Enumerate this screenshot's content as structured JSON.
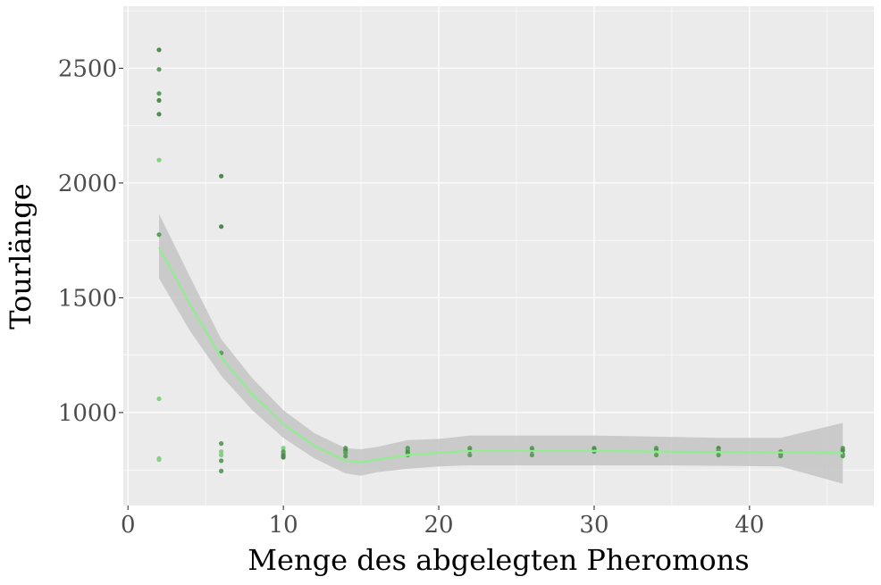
{
  "chart_data": {
    "type": "scatter",
    "title": "",
    "xlabel": "Menge des abgelegten Pheromons",
    "ylabel": "Tourlänge",
    "xlim": [
      -0.3,
      48
    ],
    "ylim": [
      595,
      2770
    ],
    "x_ticks": [
      0,
      10,
      20,
      30,
      40
    ],
    "y_ticks": [
      1000,
      1500,
      2000,
      2500
    ],
    "x_tick_labels": [
      "0",
      "10",
      "20",
      "30",
      "40"
    ],
    "y_tick_labels": [
      "1000",
      "1500",
      "2000",
      "2500"
    ],
    "grid": true,
    "legend": "none",
    "colors": {
      "panel_background": "#ebebeb",
      "grid": "#ffffff",
      "points_dark": "#4f8a4f",
      "points_mid": "#5e9e5e",
      "points_light": "#84d184",
      "smooth_line": "#90ee90",
      "confidence_band": "#c4c4c4"
    },
    "points": [
      {
        "x": 2,
        "y": 2580,
        "shade": "dark"
      },
      {
        "x": 2,
        "y": 2495,
        "shade": "mid"
      },
      {
        "x": 2,
        "y": 2390,
        "shade": "mid"
      },
      {
        "x": 2,
        "y": 2360,
        "shade": "dark"
      },
      {
        "x": 2,
        "y": 2300,
        "shade": "dark"
      },
      {
        "x": 2,
        "y": 2100,
        "shade": "light"
      },
      {
        "x": 2,
        "y": 1775,
        "shade": "mid"
      },
      {
        "x": 2,
        "y": 1060,
        "shade": "light"
      },
      {
        "x": 2,
        "y": 800,
        "shade": "light"
      },
      {
        "x": 2,
        "y": 795,
        "shade": "light"
      },
      {
        "x": 6,
        "y": 2030,
        "shade": "dark"
      },
      {
        "x": 6,
        "y": 1810,
        "shade": "dark"
      },
      {
        "x": 6,
        "y": 1260,
        "shade": "mid"
      },
      {
        "x": 6,
        "y": 865,
        "shade": "mid"
      },
      {
        "x": 6,
        "y": 830,
        "shade": "light"
      },
      {
        "x": 6,
        "y": 815,
        "shade": "light"
      },
      {
        "x": 6,
        "y": 790,
        "shade": "mid"
      },
      {
        "x": 6,
        "y": 745,
        "shade": "mid"
      },
      {
        "x": 10,
        "y": 845,
        "shade": "light"
      },
      {
        "x": 10,
        "y": 830,
        "shade": "mid"
      },
      {
        "x": 10,
        "y": 820,
        "shade": "mid"
      },
      {
        "x": 10,
        "y": 812,
        "shade": "dark"
      },
      {
        "x": 10,
        "y": 805,
        "shade": "dark"
      },
      {
        "x": 14,
        "y": 845,
        "shade": "mid"
      },
      {
        "x": 14,
        "y": 835,
        "shade": "dark"
      },
      {
        "x": 14,
        "y": 825,
        "shade": "mid"
      },
      {
        "x": 14,
        "y": 810,
        "shade": "mid"
      },
      {
        "x": 18,
        "y": 845,
        "shade": "mid"
      },
      {
        "x": 18,
        "y": 835,
        "shade": "mid"
      },
      {
        "x": 18,
        "y": 825,
        "shade": "dark"
      },
      {
        "x": 18,
        "y": 815,
        "shade": "mid"
      },
      {
        "x": 22,
        "y": 845,
        "shade": "mid"
      },
      {
        "x": 22,
        "y": 835,
        "shade": "dark"
      },
      {
        "x": 22,
        "y": 815,
        "shade": "mid"
      },
      {
        "x": 26,
        "y": 845,
        "shade": "mid"
      },
      {
        "x": 26,
        "y": 835,
        "shade": "dark"
      },
      {
        "x": 26,
        "y": 815,
        "shade": "mid"
      },
      {
        "x": 30,
        "y": 845,
        "shade": "mid"
      },
      {
        "x": 30,
        "y": 840,
        "shade": "dark"
      },
      {
        "x": 30,
        "y": 830,
        "shade": "mid"
      },
      {
        "x": 34,
        "y": 845,
        "shade": "mid"
      },
      {
        "x": 34,
        "y": 835,
        "shade": "dark"
      },
      {
        "x": 34,
        "y": 815,
        "shade": "mid"
      },
      {
        "x": 38,
        "y": 845,
        "shade": "dark"
      },
      {
        "x": 38,
        "y": 835,
        "shade": "mid"
      },
      {
        "x": 38,
        "y": 815,
        "shade": "mid"
      },
      {
        "x": 42,
        "y": 830,
        "shade": "mid"
      },
      {
        "x": 42,
        "y": 820,
        "shade": "dark"
      },
      {
        "x": 42,
        "y": 810,
        "shade": "mid"
      },
      {
        "x": 46,
        "y": 845,
        "shade": "mid"
      },
      {
        "x": 46,
        "y": 835,
        "shade": "dark"
      },
      {
        "x": 46,
        "y": 820,
        "shade": "mid"
      },
      {
        "x": 46,
        "y": 810,
        "shade": "mid"
      }
    ],
    "smooth": {
      "x": [
        2,
        4,
        6,
        8,
        10,
        12,
        14,
        15,
        16,
        18,
        20,
        22,
        26,
        30,
        34,
        38,
        42,
        46
      ],
      "y": [
        1720,
        1470,
        1240,
        1080,
        950,
        855,
        790,
        783,
        795,
        815,
        825,
        833,
        833,
        833,
        830,
        828,
        826,
        823
      ],
      "lower": [
        1585,
        1355,
        1160,
        1010,
        890,
        800,
        735,
        725,
        740,
        755,
        765,
        770,
        770,
        770,
        770,
        768,
        765,
        690
      ],
      "upper": [
        1865,
        1590,
        1320,
        1150,
        1010,
        910,
        845,
        840,
        850,
        880,
        885,
        900,
        900,
        900,
        895,
        890,
        890,
        955
      ]
    }
  }
}
